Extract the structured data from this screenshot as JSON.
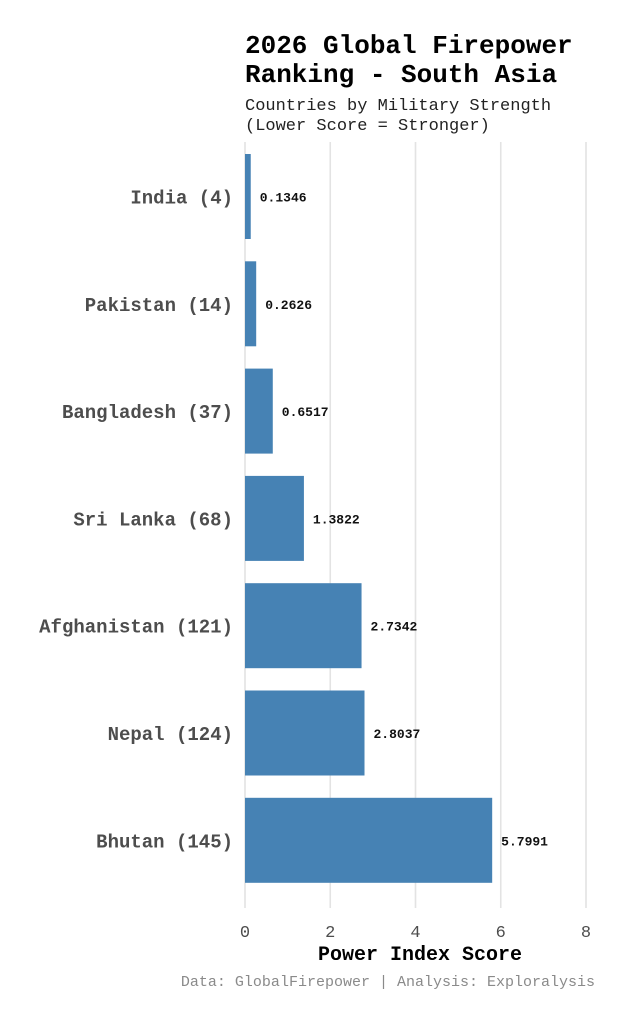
{
  "chart_data": {
    "type": "bar",
    "orientation": "horizontal",
    "title_lines": [
      "2026 Global Firepower",
      "Ranking - South Asia"
    ],
    "subtitle_lines": [
      "Countries by Military Strength",
      "(Lower Score = Stronger)"
    ],
    "categories": [
      "India (4)",
      "Pakistan (14)",
      "Bangladesh (37)",
      "Sri Lanka (68)",
      "Afghanistan (121)",
      "Nepal (124)",
      "Bhutan (145)"
    ],
    "values": [
      0.1346,
      0.2626,
      0.6517,
      1.3822,
      2.7342,
      2.8037,
      5.7991
    ],
    "value_labels": [
      "0.1346",
      "0.2626",
      "0.6517",
      "1.3822",
      "2.7342",
      "2.8037",
      "5.7991"
    ],
    "xlabel": "Power Index Score",
    "ylabel": "",
    "xlim": [
      0,
      8
    ],
    "xticks": [
      0,
      2,
      4,
      6,
      8
    ],
    "xtick_labels": [
      "0",
      "2",
      "4",
      "6",
      "8"
    ],
    "grid": "vertical major gridlines",
    "legend": "none",
    "caption": "Data: GlobalFirepower | Analysis: Exploralysis"
  },
  "colors": {
    "bar": "#4682b4",
    "grid": "#e3e3e3",
    "background": "#ffffff"
  }
}
